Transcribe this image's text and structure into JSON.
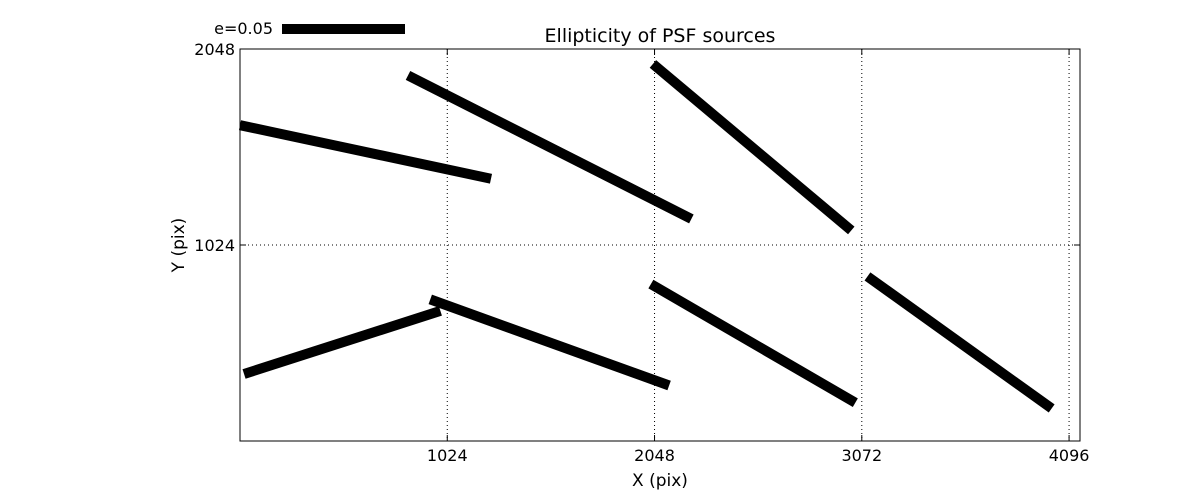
{
  "chart_data": {
    "type": "vector-field",
    "title": "Ellipticity of PSF sources",
    "xlabel": "X (pix)",
    "ylabel": "Y (pix)",
    "xlim": [
      0,
      4150
    ],
    "ylim": [
      0,
      2048
    ],
    "x_ticks": [
      1024,
      2048,
      3072,
      4096
    ],
    "y_ticks": [
      1024,
      2048
    ],
    "grid": true,
    "legend": {
      "label": "e=0.05",
      "placement": "top-left-outside",
      "reference_e": 0.05
    },
    "series": [
      {
        "vectors": [
          {
            "x1": 0,
            "y1": 1650,
            "x2": 1240,
            "y2": 1370
          },
          {
            "x1": 830,
            "y1": 1910,
            "x2": 2230,
            "y2": 1160
          },
          {
            "x1": 2040,
            "y1": 1970,
            "x2": 3020,
            "y2": 1100
          },
          {
            "x1": 20,
            "y1": 350,
            "x2": 990,
            "y2": 680
          },
          {
            "x1": 940,
            "y1": 740,
            "x2": 2120,
            "y2": 290
          },
          {
            "x1": 2030,
            "y1": 820,
            "x2": 3040,
            "y2": 200
          },
          {
            "x1": 3100,
            "y1": 860,
            "x2": 4010,
            "y2": 170
          }
        ]
      }
    ]
  }
}
